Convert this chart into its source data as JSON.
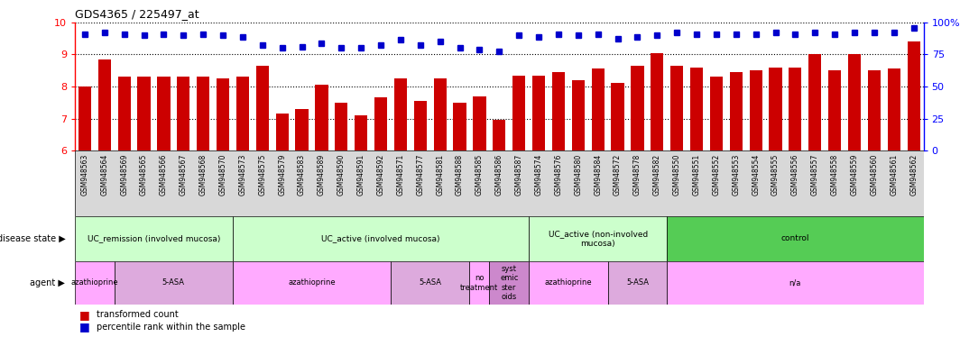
{
  "title": "GDS4365 / 225497_at",
  "samples": [
    "GSM948563",
    "GSM948564",
    "GSM948569",
    "GSM948565",
    "GSM948566",
    "GSM948567",
    "GSM948568",
    "GSM948570",
    "GSM948573",
    "GSM948575",
    "GSM948579",
    "GSM948583",
    "GSM948589",
    "GSM948590",
    "GSM948591",
    "GSM948592",
    "GSM948571",
    "GSM948577",
    "GSM948581",
    "GSM948588",
    "GSM948585",
    "GSM948586",
    "GSM948587",
    "GSM948574",
    "GSM948576",
    "GSM948580",
    "GSM948584",
    "GSM948572",
    "GSM948578",
    "GSM948582",
    "GSM948550",
    "GSM948551",
    "GSM948552",
    "GSM948553",
    "GSM948554",
    "GSM948555",
    "GSM948556",
    "GSM948557",
    "GSM948558",
    "GSM948559",
    "GSM948560",
    "GSM948561",
    "GSM948562"
  ],
  "bar_values": [
    8.0,
    8.85,
    8.3,
    8.3,
    8.3,
    8.3,
    8.3,
    8.25,
    8.3,
    8.65,
    7.15,
    7.3,
    8.05,
    7.5,
    7.1,
    7.65,
    8.25,
    7.55,
    8.25,
    7.5,
    7.7,
    6.95,
    8.35,
    8.35,
    8.45,
    8.2,
    8.55,
    8.1,
    8.65,
    9.05,
    8.65,
    8.6,
    8.3,
    8.45,
    8.5,
    8.6,
    8.6,
    9.0,
    8.5,
    9.0,
    8.5,
    8.55,
    9.4
  ],
  "percentile_values": [
    9.62,
    9.68,
    9.63,
    9.6,
    9.63,
    9.61,
    9.62,
    9.6,
    9.55,
    9.3,
    9.2,
    9.25,
    9.35,
    9.2,
    9.2,
    9.3,
    9.45,
    9.3,
    9.4,
    9.2,
    9.15,
    9.1,
    9.6,
    9.55,
    9.63,
    9.6,
    9.63,
    9.5,
    9.55,
    9.6,
    9.68,
    9.63,
    9.63,
    9.63,
    9.63,
    9.68,
    9.63,
    9.68,
    9.63,
    9.68,
    9.68,
    9.68,
    9.82
  ],
  "ylim": [
    6,
    10
  ],
  "yticks": [
    6,
    7,
    8,
    9,
    10
  ],
  "ytick_labels_left": [
    "6",
    "7",
    "8",
    "9",
    "10"
  ],
  "ytick_labels_right": [
    "0",
    "25",
    "50",
    "75",
    "100%"
  ],
  "bar_color": "#cc0000",
  "percentile_color": "#0000cc",
  "disease_state_groups": [
    {
      "label": "UC_remission (involved mucosa)",
      "start": 0,
      "end": 8,
      "color": "#ccffcc"
    },
    {
      "label": "UC_active (involved mucosa)",
      "start": 8,
      "end": 23,
      "color": "#ccffcc"
    },
    {
      "label": "UC_active (non-involved\nmucosa)",
      "start": 23,
      "end": 30,
      "color": "#ccffcc"
    },
    {
      "label": "control",
      "start": 30,
      "end": 43,
      "color": "#55cc55"
    }
  ],
  "agent_groups": [
    {
      "label": "azathioprine",
      "start": 0,
      "end": 2,
      "color": "#ffaaff"
    },
    {
      "label": "5-ASA",
      "start": 2,
      "end": 8,
      "color": "#ddaadd"
    },
    {
      "label": "azathioprine",
      "start": 8,
      "end": 16,
      "color": "#ffaaff"
    },
    {
      "label": "5-ASA",
      "start": 16,
      "end": 20,
      "color": "#ddaadd"
    },
    {
      "label": "no\ntreatment",
      "start": 20,
      "end": 21,
      "color": "#ffaaff"
    },
    {
      "label": "syst\nemic\nster\noids",
      "start": 21,
      "end": 23,
      "color": "#cc88cc"
    },
    {
      "label": "azathioprine",
      "start": 23,
      "end": 27,
      "color": "#ffaaff"
    },
    {
      "label": "5-ASA",
      "start": 27,
      "end": 30,
      "color": "#ddaadd"
    },
    {
      "label": "n/a",
      "start": 30,
      "end": 43,
      "color": "#ffaaff"
    }
  ],
  "disease_state_label": "disease state",
  "agent_label": "agent",
  "legend_bar": "transformed count",
  "legend_percentile": "percentile rank within the sample"
}
